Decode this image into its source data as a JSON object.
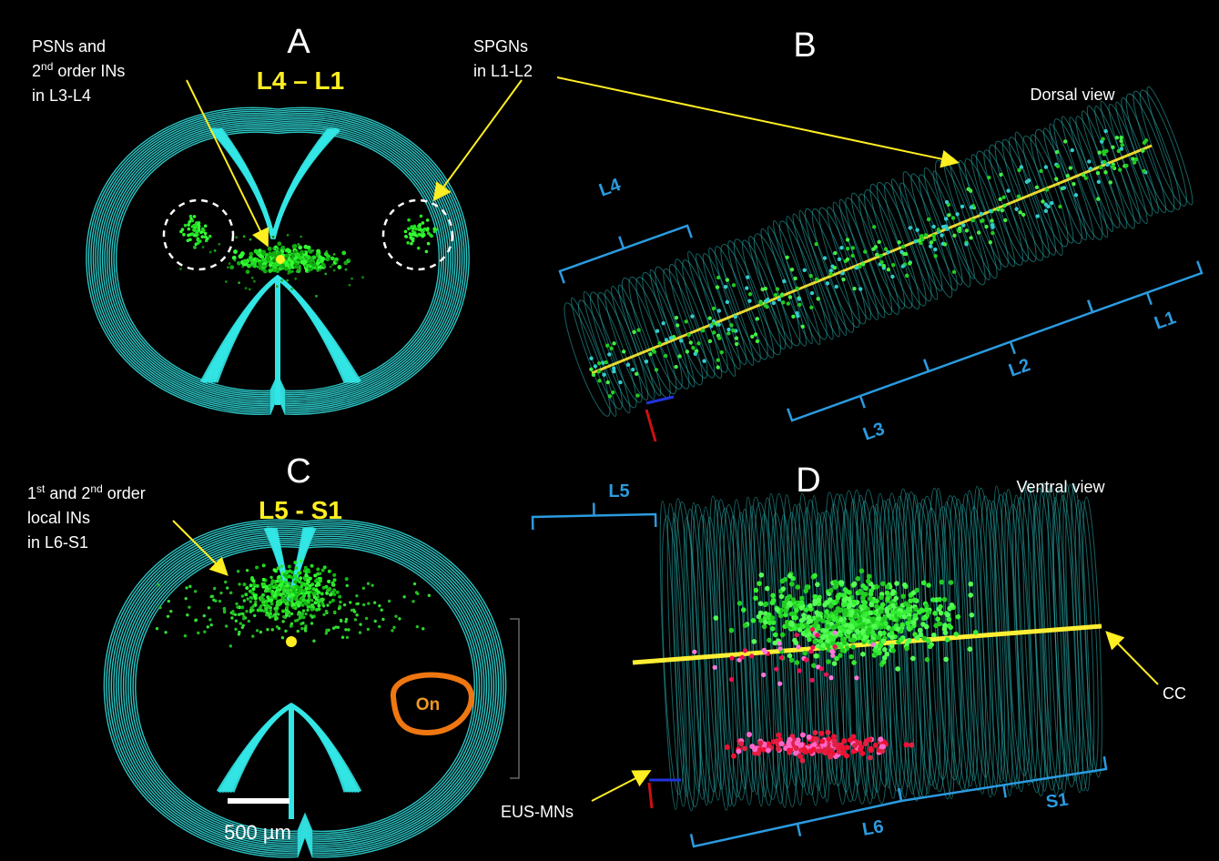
{
  "panels": [
    {
      "label": "A",
      "title": "L4 – L1",
      "notes": [
        {
          "lines": [
            [
              {
                "text": "PSNs and"
              }
            ],
            [
              {
                "text": "2"
              },
              {
                "text": "nd",
                "sup": true
              },
              {
                "text": " order INs"
              }
            ],
            [
              {
                "text": "in L3-L4"
              }
            ]
          ]
        },
        {
          "lines": [
            [
              {
                "text": "SPGNs"
              }
            ],
            [
              {
                "text": "in L1-L2"
              }
            ]
          ]
        }
      ]
    },
    {
      "label": "B",
      "view": "Dorsal view",
      "segments": [
        "L4",
        "L3",
        "L2",
        "L1"
      ]
    },
    {
      "label": "C",
      "title": "L5 - S1",
      "notes": [
        {
          "lines": [
            [
              {
                "text": "1"
              },
              {
                "text": "st",
                "sup": true
              },
              {
                "text": " and 2"
              },
              {
                "text": "nd",
                "sup": true
              },
              {
                "text": " order"
              }
            ],
            [
              {
                "text": "local INs"
              }
            ],
            [
              {
                "text": "in L6-S1"
              }
            ]
          ]
        }
      ],
      "region_label": "On",
      "scale_bar": "500 µm"
    },
    {
      "label": "D",
      "view": "Ventral view",
      "segments": [
        "L5",
        "L6",
        "S1"
      ],
      "notes": [
        {
          "lines": [
            [
              {
                "text": "CC"
              }
            ]
          ]
        },
        {
          "lines": [
            [
              {
                "text": "EUS-MNs"
              }
            ]
          ]
        }
      ]
    }
  ]
}
